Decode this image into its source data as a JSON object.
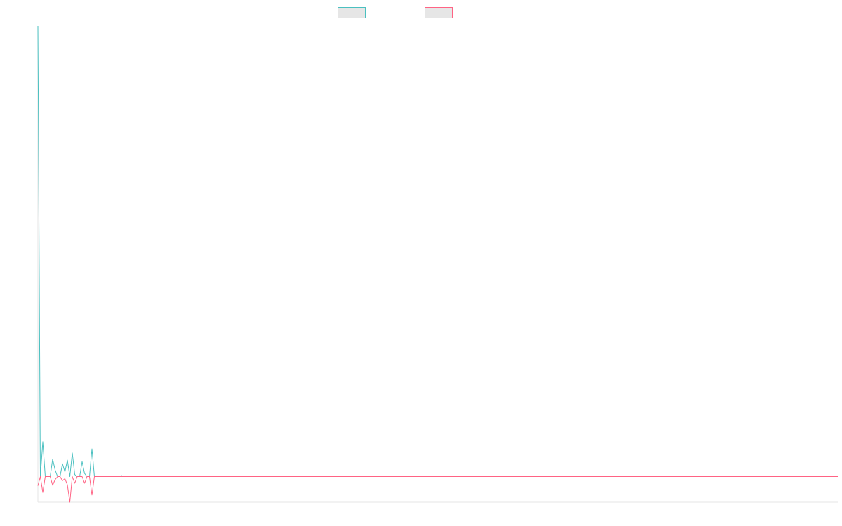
{
  "chart_data": {
    "type": "line",
    "title": "",
    "xlabel": "",
    "ylabel": "",
    "grid": false,
    "legend": "top-center",
    "xlim": [
      0,
      326
    ],
    "ylim": [
      -5,
      88
    ],
    "series": [
      {
        "color": "#4bc0c0",
        "legend_fill": "#e6e6e6",
        "values": [
          88,
          0,
          6.8,
          0,
          0,
          0,
          3.4,
          1.3,
          0,
          0,
          2.5,
          0.9,
          3.2,
          0,
          4.6,
          0.4,
          0,
          0,
          2.9,
          0.6,
          0,
          0,
          5.4,
          0,
          0.1,
          0,
          0,
          0,
          0,
          0,
          0,
          0.1,
          0,
          0,
          0.2,
          0
        ]
      },
      {
        "color": "#ff6384",
        "legend_fill": "#e6e6e6",
        "values": [
          -1.8,
          0,
          -3.1,
          0,
          0,
          0,
          -1.7,
          -0.6,
          0,
          0,
          -0.8,
          -0.4,
          -1.6,
          -5.0,
          0,
          -1.3,
          0,
          0,
          0,
          -1.3,
          0,
          0,
          -3.6,
          0,
          0,
          0,
          0,
          0,
          0,
          0,
          0,
          0,
          0,
          0,
          0,
          0
        ]
      }
    ]
  }
}
